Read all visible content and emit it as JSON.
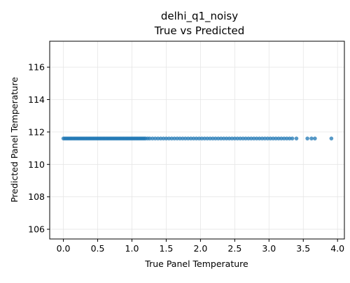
{
  "chart_data": {
    "type": "scatter",
    "title_line1": "delhi_q1_noisy",
    "title_line2": "True vs Predicted",
    "xlabel": "True Panel Temperature",
    "ylabel": "Predicted Panel Temperature",
    "xlim": [
      -0.2,
      4.1
    ],
    "ylim": [
      105.4,
      117.6
    ],
    "x_ticks": [
      0.0,
      0.5,
      1.0,
      1.5,
      2.0,
      2.5,
      3.0,
      3.5,
      4.0
    ],
    "x_tick_labels": [
      "0.0",
      "0.5",
      "1.0",
      "1.5",
      "2.0",
      "2.5",
      "3.0",
      "3.5",
      "4.0"
    ],
    "y_ticks": [
      106,
      108,
      110,
      112,
      114,
      116
    ],
    "y_tick_labels": [
      "106",
      "108",
      "110",
      "112",
      "114",
      "116"
    ],
    "grid": true,
    "marker_color": "#1f77b4",
    "series": [
      {
        "predicted_constant": 111.6,
        "x": [
          0.0,
          0.02,
          0.04,
          0.06,
          0.08,
          0.1,
          0.12,
          0.14,
          0.16,
          0.18,
          0.2,
          0.22,
          0.24,
          0.26,
          0.28,
          0.3,
          0.32,
          0.34,
          0.36,
          0.38,
          0.4,
          0.42,
          0.44,
          0.46,
          0.48,
          0.5,
          0.52,
          0.54,
          0.56,
          0.58,
          0.6,
          0.62,
          0.64,
          0.66,
          0.68,
          0.7,
          0.72,
          0.74,
          0.76,
          0.78,
          0.8,
          0.82,
          0.84,
          0.86,
          0.88,
          0.9,
          0.92,
          0.94,
          0.96,
          0.98,
          1.0,
          1.02,
          1.04,
          1.06,
          1.08,
          1.1,
          1.12,
          1.14,
          1.16,
          1.18,
          1.2,
          1.23,
          1.26,
          1.3,
          1.34,
          1.38,
          1.42,
          1.46,
          1.5,
          1.54,
          1.58,
          1.62,
          1.66,
          1.7,
          1.74,
          1.78,
          1.82,
          1.86,
          1.9,
          1.94,
          1.98,
          2.02,
          2.06,
          2.1,
          2.14,
          2.18,
          2.22,
          2.26,
          2.3,
          2.34,
          2.38,
          2.42,
          2.46,
          2.5,
          2.54,
          2.58,
          2.62,
          2.66,
          2.7,
          2.74,
          2.78,
          2.82,
          2.86,
          2.9,
          2.94,
          2.98,
          3.02,
          3.06,
          3.1,
          3.14,
          3.18,
          3.22,
          3.26,
          3.3,
          3.34,
          3.4,
          3.56,
          3.62,
          3.67,
          3.91
        ]
      }
    ]
  }
}
